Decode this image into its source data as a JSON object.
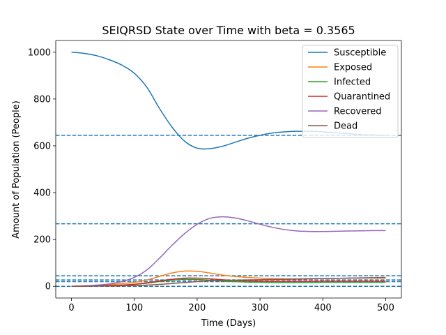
{
  "chart_data": {
    "type": "line",
    "title": "SEIQRSD State over Time with beta = 0.3565",
    "xlabel": "Time (Days)",
    "ylabel": "Amount of Population (People)",
    "xlim": [
      -25,
      525
    ],
    "ylim": [
      -50,
      1050
    ],
    "xticks": [
      0,
      100,
      200,
      300,
      400,
      500
    ],
    "yticks": [
      0,
      200,
      400,
      600,
      800,
      1000
    ],
    "legend_position": "top-right",
    "series": [
      {
        "name": "Susceptible",
        "color": "#1f77b4",
        "x": [
          0,
          20,
          40,
          60,
          80,
          100,
          120,
          140,
          160,
          180,
          200,
          220,
          240,
          260,
          280,
          300,
          320,
          340,
          360,
          380,
          400,
          420,
          440,
          460,
          480,
          500
        ],
        "y": [
          1000,
          995,
          985,
          968,
          945,
          910,
          850,
          760,
          680,
          620,
          590,
          588,
          598,
          615,
          632,
          645,
          655,
          660,
          662,
          662,
          660,
          656,
          652,
          648,
          646,
          645
        ]
      },
      {
        "name": "Exposed",
        "color": "#ff7f0e",
        "x": [
          0,
          20,
          40,
          60,
          80,
          100,
          120,
          140,
          160,
          180,
          200,
          220,
          240,
          260,
          280,
          300,
          320,
          340,
          360,
          380,
          400,
          420,
          440,
          460,
          480,
          500
        ],
        "y": [
          0,
          2,
          4,
          7,
          11,
          17,
          27,
          42,
          57,
          65,
          64,
          57,
          48,
          42,
          38,
          35,
          33,
          32,
          32,
          33,
          33,
          34,
          35,
          35,
          35,
          35
        ]
      },
      {
        "name": "Infected",
        "color": "#2ca02c",
        "x": [
          0,
          20,
          40,
          60,
          80,
          100,
          120,
          140,
          160,
          180,
          200,
          220,
          240,
          260,
          280,
          300,
          320,
          340,
          360,
          380,
          400,
          420,
          440,
          460,
          480,
          500
        ],
        "y": [
          0,
          1,
          2,
          3,
          5,
          8,
          13,
          20,
          26,
          30,
          29,
          26,
          22,
          20,
          18,
          17,
          16,
          16,
          16,
          16,
          17,
          17,
          17,
          17,
          17,
          17
        ]
      },
      {
        "name": "Quarantined",
        "color": "#d62728",
        "x": [
          0,
          20,
          40,
          60,
          80,
          100,
          120,
          140,
          160,
          180,
          200,
          220,
          240,
          260,
          280,
          300,
          320,
          340,
          360,
          380,
          400,
          420,
          440,
          460,
          480,
          500
        ],
        "y": [
          0,
          1,
          2,
          3,
          5,
          9,
          15,
          23,
          30,
          35,
          35,
          32,
          28,
          25,
          23,
          22,
          21,
          21,
          21,
          21,
          22,
          22,
          22,
          22,
          22,
          22
        ]
      },
      {
        "name": "Recovered",
        "color": "#9467bd",
        "x": [
          0,
          20,
          40,
          60,
          80,
          100,
          120,
          140,
          160,
          180,
          200,
          220,
          240,
          260,
          280,
          300,
          320,
          340,
          360,
          380,
          400,
          420,
          440,
          460,
          480,
          500
        ],
        "y": [
          0,
          2,
          5,
          10,
          20,
          38,
          70,
          120,
          175,
          225,
          265,
          290,
          297,
          292,
          280,
          265,
          252,
          242,
          236,
          234,
          234,
          235,
          236,
          237,
          238,
          238
        ]
      },
      {
        "name": "Dead",
        "color": "#8c564b",
        "x": [
          0,
          20,
          40,
          60,
          80,
          100,
          120,
          140,
          160,
          180,
          200,
          220,
          240,
          260,
          280,
          300,
          320,
          340,
          360,
          380,
          400,
          420,
          440,
          460,
          480,
          500
        ],
        "y": [
          0,
          0,
          1,
          1,
          2,
          3,
          5,
          8,
          12,
          16,
          20,
          23,
          25,
          26,
          27,
          28,
          29,
          30,
          31,
          32,
          33,
          34,
          35,
          36,
          37,
          38
        ]
      }
    ],
    "hlines": [
      {
        "y": 645,
        "color": "#1f77b4",
        "style": "dashed"
      },
      {
        "y": 267,
        "color": "#1f77b4",
        "style": "dashed"
      },
      {
        "y": 45,
        "color": "#1f77b4",
        "style": "dashed"
      },
      {
        "y": 27,
        "color": "#1f77b4",
        "style": "dashed"
      },
      {
        "y": 20,
        "color": "#1f77b4",
        "style": "dashed"
      },
      {
        "y": 0,
        "color": "#1f77b4",
        "style": "dashed"
      }
    ]
  }
}
